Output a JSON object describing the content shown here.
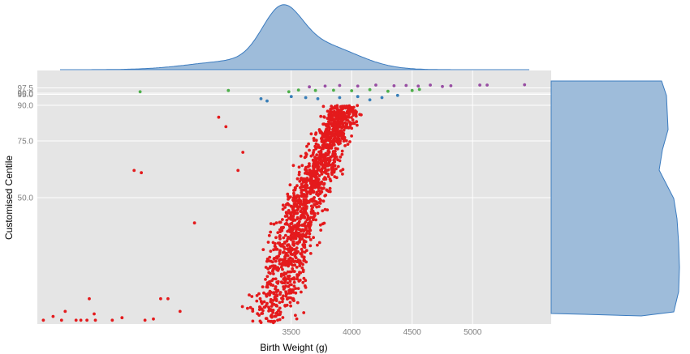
{
  "chart_data": {
    "type": "scatter",
    "title": "",
    "xlabel": "Birth Weight (g)",
    "ylabel": "Customised Centile",
    "x_ticks": [
      3500,
      4000,
      4500,
      5000
    ],
    "x_tick_labels": [
      "3500",
      "4000",
      "4500",
      "5000"
    ],
    "xlim": [
      1400,
      5650
    ],
    "y_scale": "centile (non-linear, expanding toward 100)",
    "y_ticks": [
      50,
      75,
      90,
      95,
      97.5
    ],
    "y_tick_labels": [
      "50.0",
      "75.0",
      "90.0",
      "95.0",
      "97.5"
    ],
    "y_grid_values": [
      50,
      75,
      90,
      90,
      95,
      97.5
    ],
    "y_grid_labels": [
      "50.0",
      "75.0",
      "90.0",
      "90.0",
      "95.0",
      "97.5"
    ],
    "ylim": [
      0.5,
      99
    ],
    "grid": true,
    "legend": "none",
    "marginal_plots": {
      "top": "density of birth weight (histogram-style outline)",
      "right": "density of customised centile"
    },
    "colors": {
      "panel_bg": "#e5e5e5",
      "grid": "#ffffff",
      "below_90": "#e41a1c",
      "centile_90_95": "#377eb8",
      "centile_95_97_5": "#4daf4a",
      "above_97_5": "#984ea3",
      "density_fill": "#9ebcda",
      "density_line": "#3b7bbf"
    },
    "series": [
      {
        "group": "below_90",
        "color": "#e41a1c",
        "points": [
          [
            1450,
            1.5
          ],
          [
            1530,
            3
          ],
          [
            1600,
            1.5
          ],
          [
            1630,
            5
          ],
          [
            1720,
            1.5
          ],
          [
            1760,
            1.5
          ],
          [
            1810,
            1.5
          ],
          [
            1830,
            10
          ],
          [
            1870,
            4
          ],
          [
            1880,
            1.5
          ],
          [
            2020,
            1.5
          ],
          [
            2100,
            2.5
          ],
          [
            2200,
            62
          ],
          [
            2260,
            61
          ],
          [
            2290,
            1.5
          ],
          [
            2360,
            2
          ],
          [
            2420,
            10
          ],
          [
            2480,
            10
          ],
          [
            2580,
            5
          ],
          [
            2700,
            40
          ],
          [
            2900,
            85
          ],
          [
            2960,
            81
          ],
          [
            3060,
            62
          ],
          [
            3100,
            70
          ]
        ]
      },
      {
        "group": "centile_90_95",
        "color": "#377eb8",
        "points": [
          [
            3250,
            93
          ],
          [
            3300,
            92
          ],
          [
            3500,
            94
          ],
          [
            3620,
            93.5
          ],
          [
            3720,
            93
          ],
          [
            3900,
            93.5
          ],
          [
            4050,
            94
          ],
          [
            4150,
            92.5
          ],
          [
            4250,
            93.5
          ],
          [
            4380,
            94.5
          ]
        ]
      },
      {
        "group": "centile_95_97_5",
        "color": "#4daf4a",
        "points": [
          [
            2250,
            96
          ],
          [
            2980,
            96.5
          ],
          [
            3480,
            96
          ],
          [
            3560,
            96.7
          ],
          [
            3700,
            96.5
          ],
          [
            3850,
            96.6
          ],
          [
            4000,
            96.4
          ],
          [
            4150,
            96.8
          ],
          [
            4300,
            96.2
          ],
          [
            4500,
            96.5
          ],
          [
            4560,
            96.9
          ]
        ]
      },
      {
        "group": "above_97_5",
        "color": "#984ea3",
        "points": [
          [
            3650,
            97.8
          ],
          [
            3780,
            98
          ],
          [
            3900,
            98.2
          ],
          [
            4050,
            98
          ],
          [
            4200,
            98.3
          ],
          [
            4350,
            98.1
          ],
          [
            4450,
            98.2
          ],
          [
            4550,
            98
          ],
          [
            4650,
            98.3
          ],
          [
            4750,
            97.9
          ],
          [
            4820,
            98.1
          ],
          [
            5060,
            98.3
          ],
          [
            5120,
            98.3
          ],
          [
            5430,
            98.4
          ]
        ]
      }
    ],
    "bulk": {
      "description": "dense cloud of red points below the 90th centile",
      "count": 1450,
      "x_center_at_low_centile": 3350,
      "x_center_at_high_centile": 3950,
      "seed": 7
    }
  }
}
